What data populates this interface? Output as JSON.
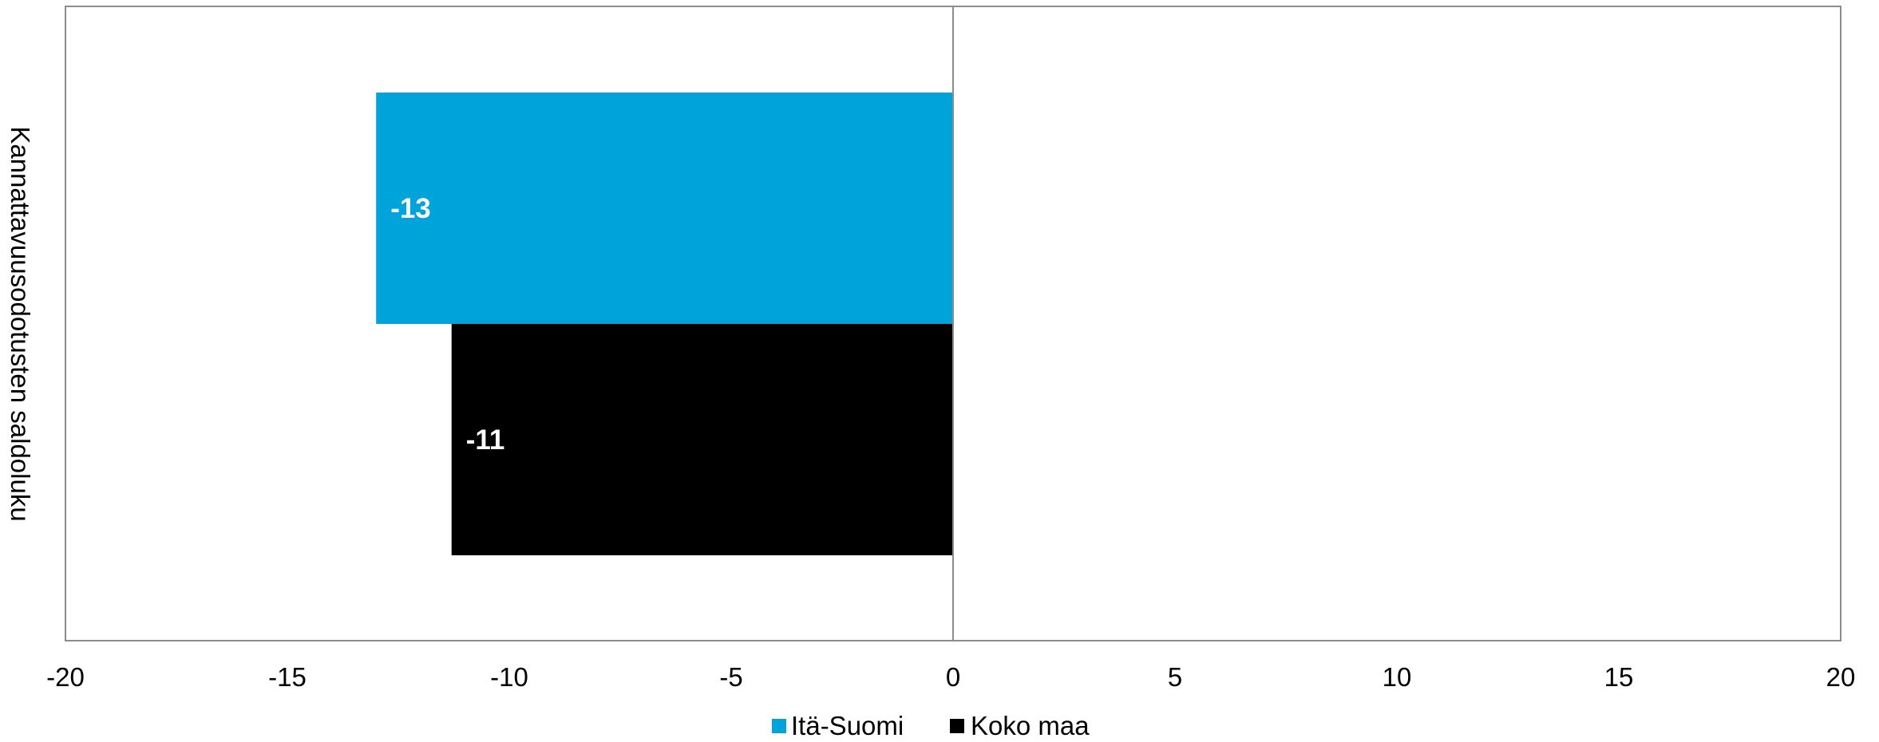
{
  "chart_data": {
    "type": "bar",
    "orientation": "horizontal",
    "ylabel": "Kannattavuusodotusten saldoluku",
    "xlim": [
      -20,
      20
    ],
    "x_ticks": [
      "-20",
      "-15",
      "-10",
      "-5",
      "0",
      "5",
      "10",
      "15",
      "20"
    ],
    "grid": false,
    "legend_position": "bottom",
    "series": [
      {
        "name": "Itä-Suomi",
        "value": -13,
        "label": "-13",
        "color": "#00a3da"
      },
      {
        "name": "Koko maa",
        "value": -11.3,
        "label": "-11",
        "color": "#000000"
      }
    ]
  }
}
